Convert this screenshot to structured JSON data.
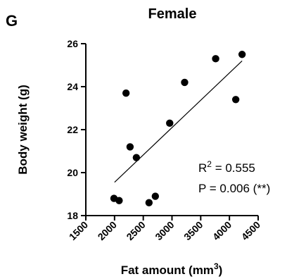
{
  "panel_letter": "G",
  "chart_data": {
    "type": "scatter",
    "title": "Female",
    "xlabel": "Fat amount (mm",
    "xlabel_sup": "3",
    "xlabel_close": ")",
    "ylabel": "Body weight (g)",
    "xlim": [
      1500,
      4500
    ],
    "ylim": [
      18,
      26
    ],
    "xticks": [
      1500,
      2000,
      2500,
      3000,
      3500,
      4000,
      4500
    ],
    "yticks": [
      18,
      20,
      22,
      24,
      26
    ],
    "grid": false,
    "points": [
      {
        "x": 1990,
        "y": 18.8
      },
      {
        "x": 2080,
        "y": 18.7
      },
      {
        "x": 2200,
        "y": 23.7
      },
      {
        "x": 2270,
        "y": 21.2
      },
      {
        "x": 2380,
        "y": 20.7
      },
      {
        "x": 2600,
        "y": 18.6
      },
      {
        "x": 2710,
        "y": 18.9
      },
      {
        "x": 2960,
        "y": 22.3
      },
      {
        "x": 3220,
        "y": 24.2
      },
      {
        "x": 3760,
        "y": 25.3
      },
      {
        "x": 4110,
        "y": 23.4
      },
      {
        "x": 4220,
        "y": 25.5
      }
    ],
    "regression": {
      "x1": 2000,
      "y1": 19.55,
      "x2": 4220,
      "y2": 25.2
    },
    "stats": {
      "r2_prefix": "R",
      "r2_sup": "2",
      "r2_value": " = 0.555",
      "p_text": "P = 0.006 (**)"
    },
    "marker_color": "#000000",
    "line_color": "#000000"
  }
}
